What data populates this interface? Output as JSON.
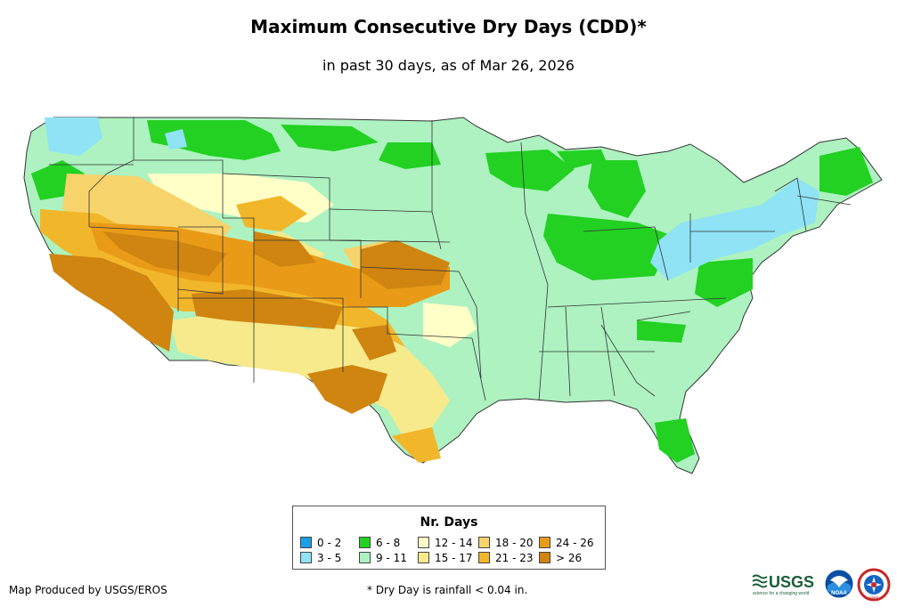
{
  "title": "Maximum Consecutive Dry Days (CDD)*",
  "subtitle": "in past 30 days, as of Mar 26, 2026",
  "legend": {
    "title": "Nr. Days",
    "items": [
      {
        "label": "0 - 2",
        "color": "#1b9fe8"
      },
      {
        "label": "3 - 5",
        "color": "#8fe3f5"
      },
      {
        "label": "6 - 8",
        "color": "#22d122"
      },
      {
        "label": "9 - 11",
        "color": "#adf2c0"
      },
      {
        "label": "12 - 14",
        "color": "#ffffc8"
      },
      {
        "label": "15 - 17",
        "color": "#f7ea8c"
      },
      {
        "label": "18 - 20",
        "color": "#f7d36b"
      },
      {
        "label": "21 - 23",
        "color": "#f2b62a"
      },
      {
        "label": "24 - 26",
        "color": "#e99b17"
      },
      {
        "label": "> 26",
        "color": "#cf8510"
      }
    ]
  },
  "credit": "Map Produced by USGS/EROS",
  "footnote": "* Dry Day is rainfall < 0.04 in.",
  "logos": {
    "usgs": {
      "text": "USGS",
      "tagline": "science for a changing world"
    },
    "noaa": {
      "text": "NOAA"
    },
    "nws": {
      "text": "NWS"
    }
  }
}
